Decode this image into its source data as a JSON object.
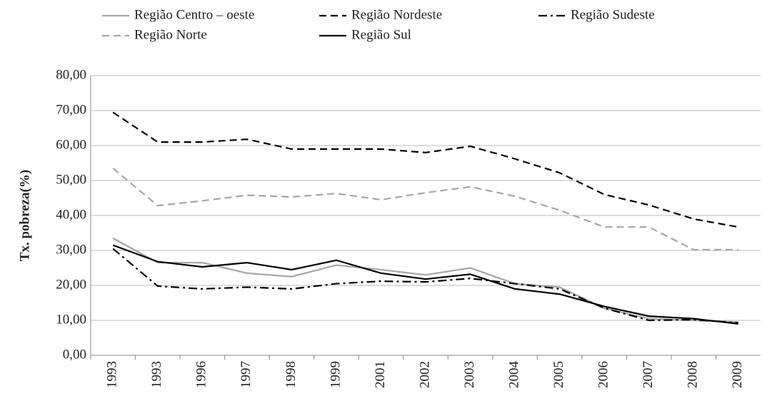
{
  "chart_data": {
    "type": "line",
    "ylabel": "Tx. pobreza(%)",
    "categories": [
      "1993",
      "1993",
      "1996",
      "1997",
      "1998",
      "1999",
      "2001",
      "2002",
      "2003",
      "2004",
      "2005",
      "2006",
      "2007",
      "2008",
      "2009"
    ],
    "ylim": [
      0,
      80
    ],
    "yticks": [
      {
        "value": 0,
        "label": "0,00"
      },
      {
        "value": 10,
        "label": "10,00"
      },
      {
        "value": 20,
        "label": "20,00"
      },
      {
        "value": 30,
        "label": "30,00"
      },
      {
        "value": 40,
        "label": "40,00"
      },
      {
        "value": 50,
        "label": "50,00"
      },
      {
        "value": 60,
        "label": "60,00"
      },
      {
        "value": 70,
        "label": "70,00"
      },
      {
        "value": 80,
        "label": "80,00"
      }
    ],
    "grid": true,
    "series": [
      {
        "name": "Região Centro – oeste",
        "color": "#a6a6a6",
        "dash": "solid",
        "values": [
          33.5,
          26.5,
          26.5,
          23.5,
          22.5,
          25.8,
          24.5,
          23,
          25,
          20.5,
          19.5,
          13.5,
          10.5,
          10,
          9.5
        ]
      },
      {
        "name": "Região Nordeste",
        "color": "#000000",
        "dash": "dashed",
        "values": [
          69.5,
          61,
          61,
          61.8,
          59,
          59,
          59,
          58,
          59.8,
          56.2,
          52.2,
          46,
          43,
          39,
          36.7
        ]
      },
      {
        "name": "Região Sudeste",
        "color": "#000000",
        "dash": "dashdot",
        "values": [
          30.5,
          19.8,
          19,
          19.5,
          19,
          20.5,
          21.2,
          21,
          22,
          20.5,
          19,
          13.5,
          10,
          10.2,
          9.3
        ]
      },
      {
        "name": "Região Norte",
        "color": "#a6a6a6",
        "dash": "dashed",
        "values": [
          53.5,
          42.8,
          44.2,
          45.8,
          45.3,
          46.3,
          44.5,
          46.5,
          48.2,
          45.5,
          41.5,
          36.7,
          36.7,
          30.2,
          30.2
        ]
      },
      {
        "name": "Região Sul",
        "color": "#000000",
        "dash": "solid",
        "values": [
          31.5,
          26.8,
          25.3,
          26.5,
          24.5,
          27.2,
          23.5,
          21.8,
          23.2,
          19,
          17.5,
          14,
          11.2,
          10.5,
          9
        ]
      }
    ]
  }
}
